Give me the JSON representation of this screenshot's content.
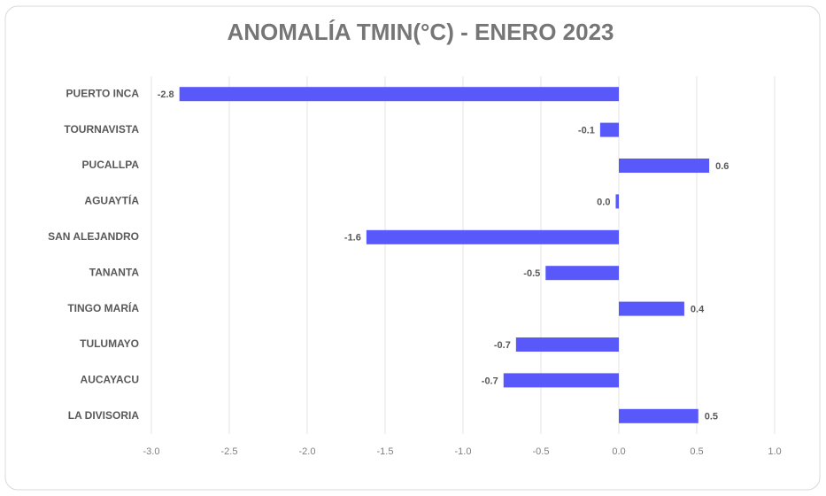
{
  "chart_data": {
    "type": "bar",
    "orientation": "horizontal",
    "title": "ANOMALÍA TMIN(°C) - ENERO 2023",
    "categories": [
      "PUERTO INCA",
      "TOURNAVISTA",
      "PUCALLPA",
      "AGUAYTÍA",
      "SAN ALEJANDRO",
      "TANANTA",
      "TINGO MARÍA",
      "TULUMAYO",
      "AUCAYACU",
      "LA DIVISORIA"
    ],
    "values": [
      -2.82,
      -0.12,
      0.58,
      -0.02,
      -1.62,
      -0.47,
      0.42,
      -0.66,
      -0.74,
      0.51
    ],
    "value_labels": [
      "-2.8",
      "-0.1",
      "0.6",
      "0.0",
      "-1.6",
      "-0.5",
      "0.4",
      "-0.7",
      "-0.7",
      "0.5"
    ],
    "color": "#5858fb",
    "xlim": [
      -3,
      1
    ],
    "xticks": [
      {
        "value": -3,
        "label": "-3.0"
      },
      {
        "value": -2.5,
        "label": "-2.5"
      },
      {
        "value": -2,
        "label": "-2.0"
      },
      {
        "value": -1.5,
        "label": "-1.5"
      },
      {
        "value": -1,
        "label": "-1.0"
      },
      {
        "value": -0.5,
        "label": "-0.5"
      },
      {
        "value": 0,
        "label": "0.0"
      },
      {
        "value": 0.5,
        "label": "0.5"
      },
      {
        "value": 1,
        "label": "1.0"
      }
    ],
    "grid": true
  }
}
